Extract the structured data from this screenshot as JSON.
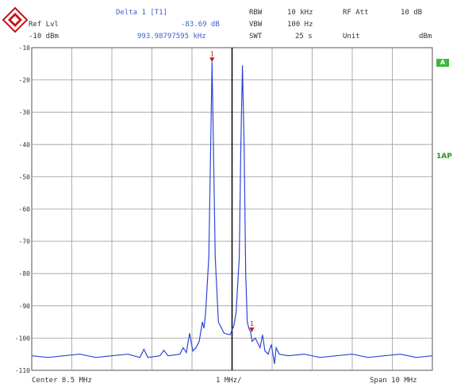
{
  "header": {
    "ref_lvl_label": "Ref Lvl",
    "ref_lvl_value": "-10 dBm",
    "delta_label": "Delta 1 [T1]",
    "delta_db": "-83.69 dB",
    "delta_freq": "993.98797595 kHz",
    "rbw_label": "RBW",
    "rbw_value": "10 kHz",
    "vbw_label": "VBW",
    "vbw_value": "100 Hz",
    "swt_label": "SWT",
    "swt_value": "25 s",
    "rf_att_label": "RF Att",
    "rf_att_value": "10 dB",
    "unit_label": "Unit",
    "unit_value": "dBm"
  },
  "side": {
    "a_badge": "A",
    "trace_mode": "1AP"
  },
  "footer": {
    "center": "Center 8.5 MHz",
    "div": "1 MHz/",
    "span": "Span 10 MHz"
  },
  "marker_labels": [
    "1",
    "1"
  ],
  "colors": {
    "trace": "#2e46d8",
    "grid": "#9a9a9a",
    "marker": "#c81414",
    "badge": "#3cb83c",
    "text": "#3a5fcd"
  },
  "chart_data": {
    "type": "line",
    "x_unit": "MHz",
    "y_unit": "dBm",
    "xlim": [
      3.5,
      13.5
    ],
    "ylim": [
      -110,
      -10
    ],
    "y_ticks": [
      -10,
      -20,
      -30,
      -40,
      -50,
      -60,
      -70,
      -80,
      -90,
      -100,
      -110
    ],
    "y_tick_labels": [
      "-10",
      "-20",
      "-30",
      "-40",
      "-50",
      "-60",
      "-70",
      "-80",
      "-90",
      "-100",
      "-110"
    ],
    "grid": true,
    "center_line_x": 8.5,
    "series": [
      {
        "x": [
          3.5,
          3.9,
          4.3,
          4.7,
          5.1,
          5.5,
          5.9,
          6.2,
          6.3,
          6.4,
          6.7,
          6.8,
          6.9,
          7.2,
          7.28,
          7.36,
          7.44,
          7.52,
          7.6,
          7.68,
          7.76,
          7.8,
          7.84,
          7.92,
          8.0,
          8.08,
          8.16,
          8.3,
          8.45,
          8.55,
          8.6,
          8.68,
          8.72,
          8.76,
          8.8,
          8.84,
          8.88,
          8.92,
          8.96,
          9.0,
          9.08,
          9.2,
          9.26,
          9.32,
          9.4,
          9.48,
          9.56,
          9.6,
          9.68,
          9.9,
          10.3,
          10.7,
          11.1,
          11.5,
          11.9,
          12.3,
          12.7,
          13.1,
          13.5
        ],
        "y": [
          -105.5,
          -106,
          -105.5,
          -105,
          -106,
          -105.5,
          -105,
          -106,
          -103.5,
          -106,
          -105.5,
          -103.8,
          -105.5,
          -105,
          -103,
          -104.5,
          -98.5,
          -104,
          -103,
          -101,
          -95,
          -97,
          -92,
          -75,
          -14.5,
          -75,
          -95,
          -98.5,
          -99,
          -96,
          -92,
          -75,
          -40,
          -15.5,
          -40,
          -80,
          -95,
          -97,
          -98,
          -101,
          -100,
          -103,
          -99,
          -104,
          -105,
          -102,
          -108,
          -103,
          -105,
          -105.5,
          -105,
          -106,
          -105.5,
          -105,
          -106,
          -105.5,
          -105,
          -106,
          -105.5
        ]
      }
    ],
    "markers": [
      {
        "label": "1",
        "x": 8.0,
        "y": -14.5
      },
      {
        "label": "1",
        "x": 8.994,
        "y": -98.2
      }
    ]
  }
}
